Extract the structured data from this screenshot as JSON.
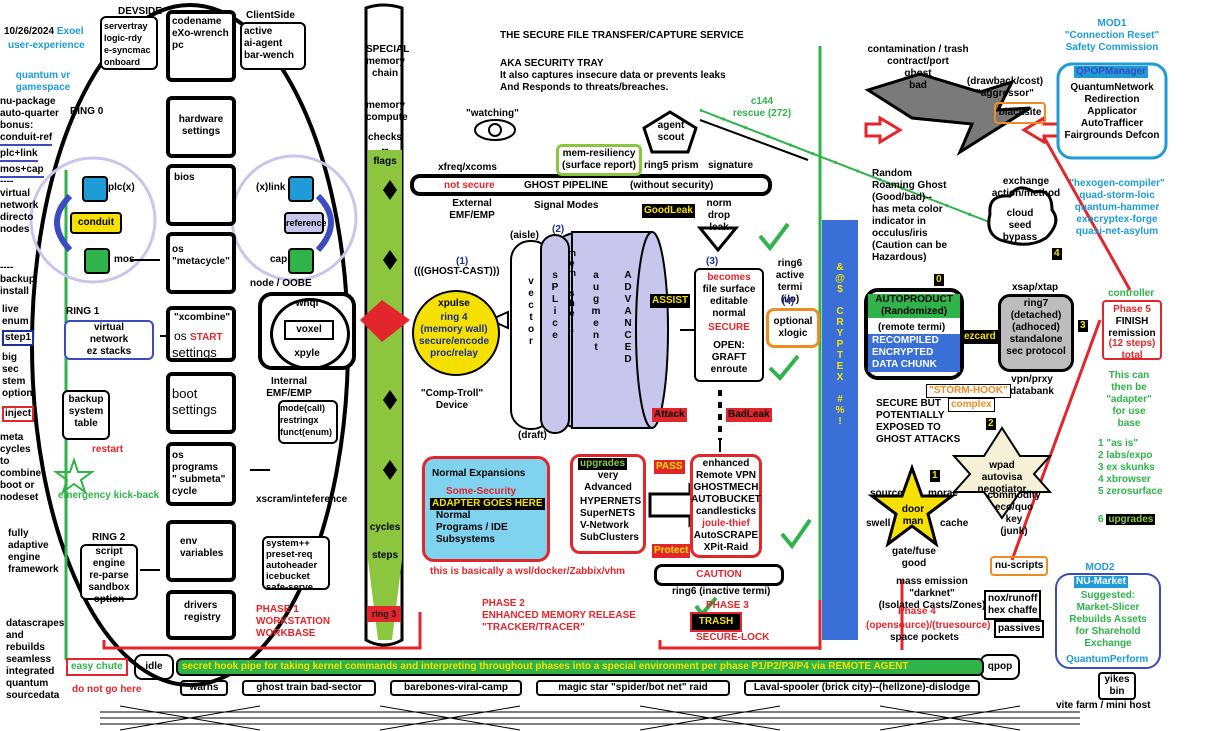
{
  "colors": {
    "blue": "#1f9bd6",
    "red": "#e3262b",
    "green": "#2fb34a",
    "lime": "#8cc63f",
    "lavender": "#c8c6ec",
    "cyan": "#7fd3ee",
    "yellow": "#f5e000",
    "navy": "#1c2f9c"
  },
  "left": {
    "date": "10/26/2024",
    "exoel": "Exoel",
    "ux": "user-experience",
    "quantum": "quantum  vr\ngamespace",
    "nupkg": "nu-package\nauto-quarter\nbonus:",
    "conduit_ref": "conduit-ref",
    "plc_link": "plc+link",
    "mos_cap": "mos+cap",
    "virtual": "----\nvirtual\nnetwork\ndirecto\nnodes",
    "backup": "----\nbackup\ninstall",
    "live": "live\nenum",
    "step1": "step1",
    "bigsec": "big\nsec\nstem\noption",
    "inject": "inject",
    "meta": "meta\ncycles\nto\ncombine\nboot or\nnodeset",
    "fully": "fully\nadaptive\nengine\nframework",
    "datascrapes": "datascrapes\nand\nrebuilds\nseamless\nintegrated\nquantum\nsourcedata",
    "easy_chute": "easy chute",
    "do_not": "do not go here",
    "idle": "idle",
    "warns": "warns"
  },
  "ring": {
    "devside": "DEVSIDE",
    "servertray": "servertray\nlogic-rdy\ne-syncmac\nonboard",
    "codename": "codename\neXo-wrench\npc",
    "clientside": "ClientSide",
    "active": "active\nai-agent\nbar-wench",
    "ring0": "RING 0",
    "hardware": "hardware\nsettings",
    "bios": "bios",
    "plcx": "plc(x)",
    "xlink": "(x)link",
    "conduit": "conduit",
    "reference": "reference",
    "mos": "mos",
    "cap": "cap",
    "os_meta": "os\n\"metacycle\"",
    "node_oobe": "node / OOBE",
    "whql": "whql",
    "voxel": "voxel",
    "xpyle": "xpyle",
    "ring1": "RING 1",
    "virtual_box": "virtual\nnetwork\nez stacks",
    "xcombine": "\"xcombine\"",
    "os_start": "os",
    "start": "START",
    "settings": "settings",
    "boot": "boot\nsettings",
    "internal": "Internal\nEMF/EMP",
    "mode": "mode(call)\nrestringx\nfunct(enum)",
    "backup_box": "backup\nsystem\ntable",
    "restart": "restart",
    "kickback": "emergency kick-back",
    "os_programs": "os\nprograms\n\" submeta\"\ncycle",
    "xscram": "xscram/inteference",
    "ring2": "RING 2",
    "script": "script\nengine\nre-parse\nsandbox\noption",
    "env": "env\nvariables",
    "systempp": "system++\npreset-req\nautoheader\nicebucket\nsafe-serve",
    "drivers": "drivers\nregistry",
    "phase1": "PHASE 1\nWORKSTATION\nWORKBASE"
  },
  "special": {
    "title": "SPECIAL\nmemory\nchain",
    "memory": "memory\ncompute",
    "checks": "checks\n--\nflags",
    "cycles": "cycles",
    "steps": "steps",
    "ring3": "ring 3"
  },
  "center": {
    "title": "THE SECURE FILE TRANSFER/CAPTURE SERVICE",
    "aka": "AKA SECURITY TRAY\nIt also captures insecure data or prevents leaks\nAnd Responds to threats/breaches.",
    "watching": "\"watching\"",
    "agent": "agent\nscout",
    "memres": "mem-resiliency\n(surface report)",
    "xfreq": "xfreq/xcoms",
    "ring5": "ring5 prism",
    "signature": "signature",
    "c144": "c144\nrescue (272)",
    "not_secure": "not secure",
    "ghost": "GHOST PIPELINE",
    "without": "(without security)",
    "external": "External\nEMF/EMP",
    "signal": "Signal Modes",
    "goodleak": "GoodLeak",
    "norm": "norm\ndrop\nleak",
    "n1": "(1)",
    "ghostcast": "(((GHOST-CAST)))",
    "aisle": "(aisle)",
    "n2": "(2)",
    "vector": "v\ne\nc\nt\no\nr",
    "splice": "s\nP\nL\ni\nc\ne",
    "memshelf": "m\ne\nm\n\ns\nh\ne\nl\nf",
    "augment": "a\nu\ng\nm\ne\nn\nt",
    "advanced": "A\nD\nV\nA\nN\nC\nE\nD",
    "xpulse": "xpulse",
    "ring4": "ring 4\n(memory wall)",
    "secure_enc": "secure/encode\nproc/relay",
    "assist": "ASSIST",
    "n3": "(3)",
    "becomes": "becomes",
    "file_surface": "file surface\neditable\nnormal",
    "secure": "SECURE",
    "open": "OPEN:\nGRAFT\nenroute",
    "ring6": "ring6\nactive\ntermi\n(i/o)",
    "n4": "(4)",
    "optional": "optional\nxlogic",
    "comptroll": "\"Comp-Troll\"\nDevice",
    "draft": "(draft)",
    "attack": "Attack",
    "badleak": "BadLeak",
    "normal_exp": "Normal Expansions",
    "some_security": "Some-Security",
    "adapter": "ADAPTER GOES HERE",
    "normal_prog": "Normal\nPrograms / IDE\nSubsystems",
    "wsl": "this is basically a wsl/docker/Zabbix/vhm",
    "upgrades": "upgrades",
    "very": "very\nAdvanced",
    "hypernets": "HYPERNETS\nSuperNETS\nV-Network\nSubClusters",
    "pass": "PASS",
    "protect": "Protect",
    "enhanced": "enhanced\nRemote VPN",
    "ghostmech": "GHOSTMECH\nAUTOBUCKET\ncandlesticks",
    "joule": "joule-thief",
    "autoscrape": "AutoSCRAPE\nXPit-Raid",
    "caution": "CAUTION",
    "ring6_in": "ring6 (inactive termi)",
    "phase2": "PHASE 2\nENHANCED MEMORY RELEASE\n\"TRACKER/TRACER\"",
    "phase3": "PHASE 3",
    "trash": "TRASH",
    "securelock": "SECURE-LOCK"
  },
  "right": {
    "cryptex": "&\n@\n$\n\nC\nR\nY\nP\nT\nE\nX\n\n#\n%\n!",
    "contamination": "contamination / trash\ncontract/port\nghost\nbad",
    "drawback": "(drawback/cost)\n\"aggressor\"",
    "blacksite": "blacksite",
    "random": "Random\nRoaming Ghost\n(Good/bad)--\nhas meta color\nindicator in\nocculus/iris\n(Caution can be\nHazardous)",
    "exchange": "exchange\naction/method",
    "cloud": "cloud\nseed\nbypass",
    "autoproduct": "AUTOPRODUCT\n(Randomized)",
    "remote_termi": "(remote termi)",
    "recompiled": "RECOMPILED\nENCRYPTED\nDATA CHUNK",
    "ezcard": "ezcard",
    "xsap": "xsap/xtap",
    "ring7": "ring7\n(detached)\n(adhoced)\nstandalone\nsec protocol",
    "vpn": "vpn/prxy\ndatabank",
    "stormhook": "\"STORM-HOOK\"",
    "complex": "complex",
    "secure_but": "SECURE BUT\nPOTENTIALLY\nEXPOSED TO\nGHOST ATTACKS",
    "wpad": "wpad\nautovisa\nnegotiator",
    "source": "source",
    "morae": "morae",
    "swell": "swell",
    "cache": "cache",
    "doorman": "door\nman",
    "gate": "gate/fuse\ngood",
    "commodity": "commodity\neco/quo\nkey\n(junk)",
    "mass": "mass emission\n\"darknet\"\n(Isolated Casts/Zones)",
    "phase4": "Phase 4",
    "opensource": "(opensource)/(truesource)",
    "space": "space pockets",
    "nuscripts": "nu-scripts",
    "nox": "nox/runoff\nhex chaffe",
    "passives": "passives",
    "mod1": "MOD1\n\"Connection Reset\"\nSafety Commission",
    "qpop_mgr": "QPOPManager",
    "qpop_items": "QuantumNetwork\nRedirection\nApplicator\nAutoTrafficer\nFairgrounds Defcon",
    "hexogen": "\"hexogen-compiler\"\nquad-storm-loic\nquantum-hammer\nexocryptex-forge\nquasi-net-asylum",
    "controller": "controller",
    "phase5": "Phase 5",
    "finish": "FINISH\nremission",
    "twelve": "(12 steps)\ntotal",
    "thiscan": "This can\nthen be\n\"adapter\"\nfor use\nbase",
    "list": "1 \"as is\"\n2 labs/expo\n3 ex skunks\n4 xbrowser\n5 zerosurface",
    "six": "6",
    "upgrades": "upgrades",
    "mod2": "MOD2",
    "numarket": "NU-Market",
    "suggested": "Suggested:\nMarket-Slicer\nRebuilds Assets\nfor Sharehold\nExchange",
    "qperf": "QuantumPerform",
    "yikes": "yikes\nbin",
    "vite": "vite farm / mini host",
    "qpop": "qpop",
    "b0": "0",
    "b1": "1",
    "b2": "2",
    "b3": "3",
    "b4": "4"
  },
  "bottom": {
    "pipe": "secret hook pipe for taking kernel commands and interpreting throughout phases into a special environment per phase P1/P2/P3/P4 via REMOTE AGENT",
    "ghost_train": "ghost train bad-sector",
    "barebones": "barebones-viral-camp",
    "magic": "magic star \"spider/bot net\" raid",
    "laval": "Laval-spooler (brick city)--(hellzone)-dislodge"
  }
}
